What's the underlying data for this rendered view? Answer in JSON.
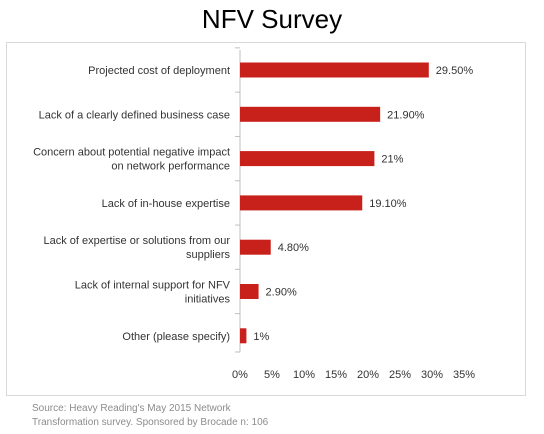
{
  "title": "NFV Survey",
  "source": [
    "Source: Heavy Reading's May  2015 Network",
    "Transformation survey. Sponsored by Brocade   n: 106"
  ],
  "colors": {
    "bar": "#c8201a",
    "axis": "#bfbfbf",
    "text": "#333333"
  },
  "chart_data": {
    "type": "bar",
    "orientation": "horizontal",
    "title": "NFV Survey",
    "categories": [
      [
        "Projected cost of deployment"
      ],
      [
        "Lack of a clearly defined business case"
      ],
      [
        "Concern about potential negative impact",
        "on network performance"
      ],
      [
        "Lack of in-house expertise"
      ],
      [
        "Lack of expertise or solutions from our",
        "suppliers"
      ],
      [
        "Lack of internal support for NFV",
        "initiatives"
      ],
      [
        "Other (please specify)"
      ]
    ],
    "values": [
      29.5,
      21.9,
      21,
      19.1,
      4.8,
      2.9,
      1
    ],
    "value_labels": [
      "29.50%",
      "21.90%",
      "21%",
      "19.10%",
      "4.80%",
      "2.90%",
      "1%"
    ],
    "xlim": [
      0,
      35
    ],
    "xticks": [
      0,
      5,
      10,
      15,
      20,
      25,
      30,
      35
    ],
    "xtick_labels": [
      "0%",
      "5%",
      "10%",
      "15%",
      "20%",
      "25%",
      "30%",
      "35%"
    ],
    "xlabel": "",
    "ylabel": "",
    "grid": false,
    "legend": "none"
  }
}
